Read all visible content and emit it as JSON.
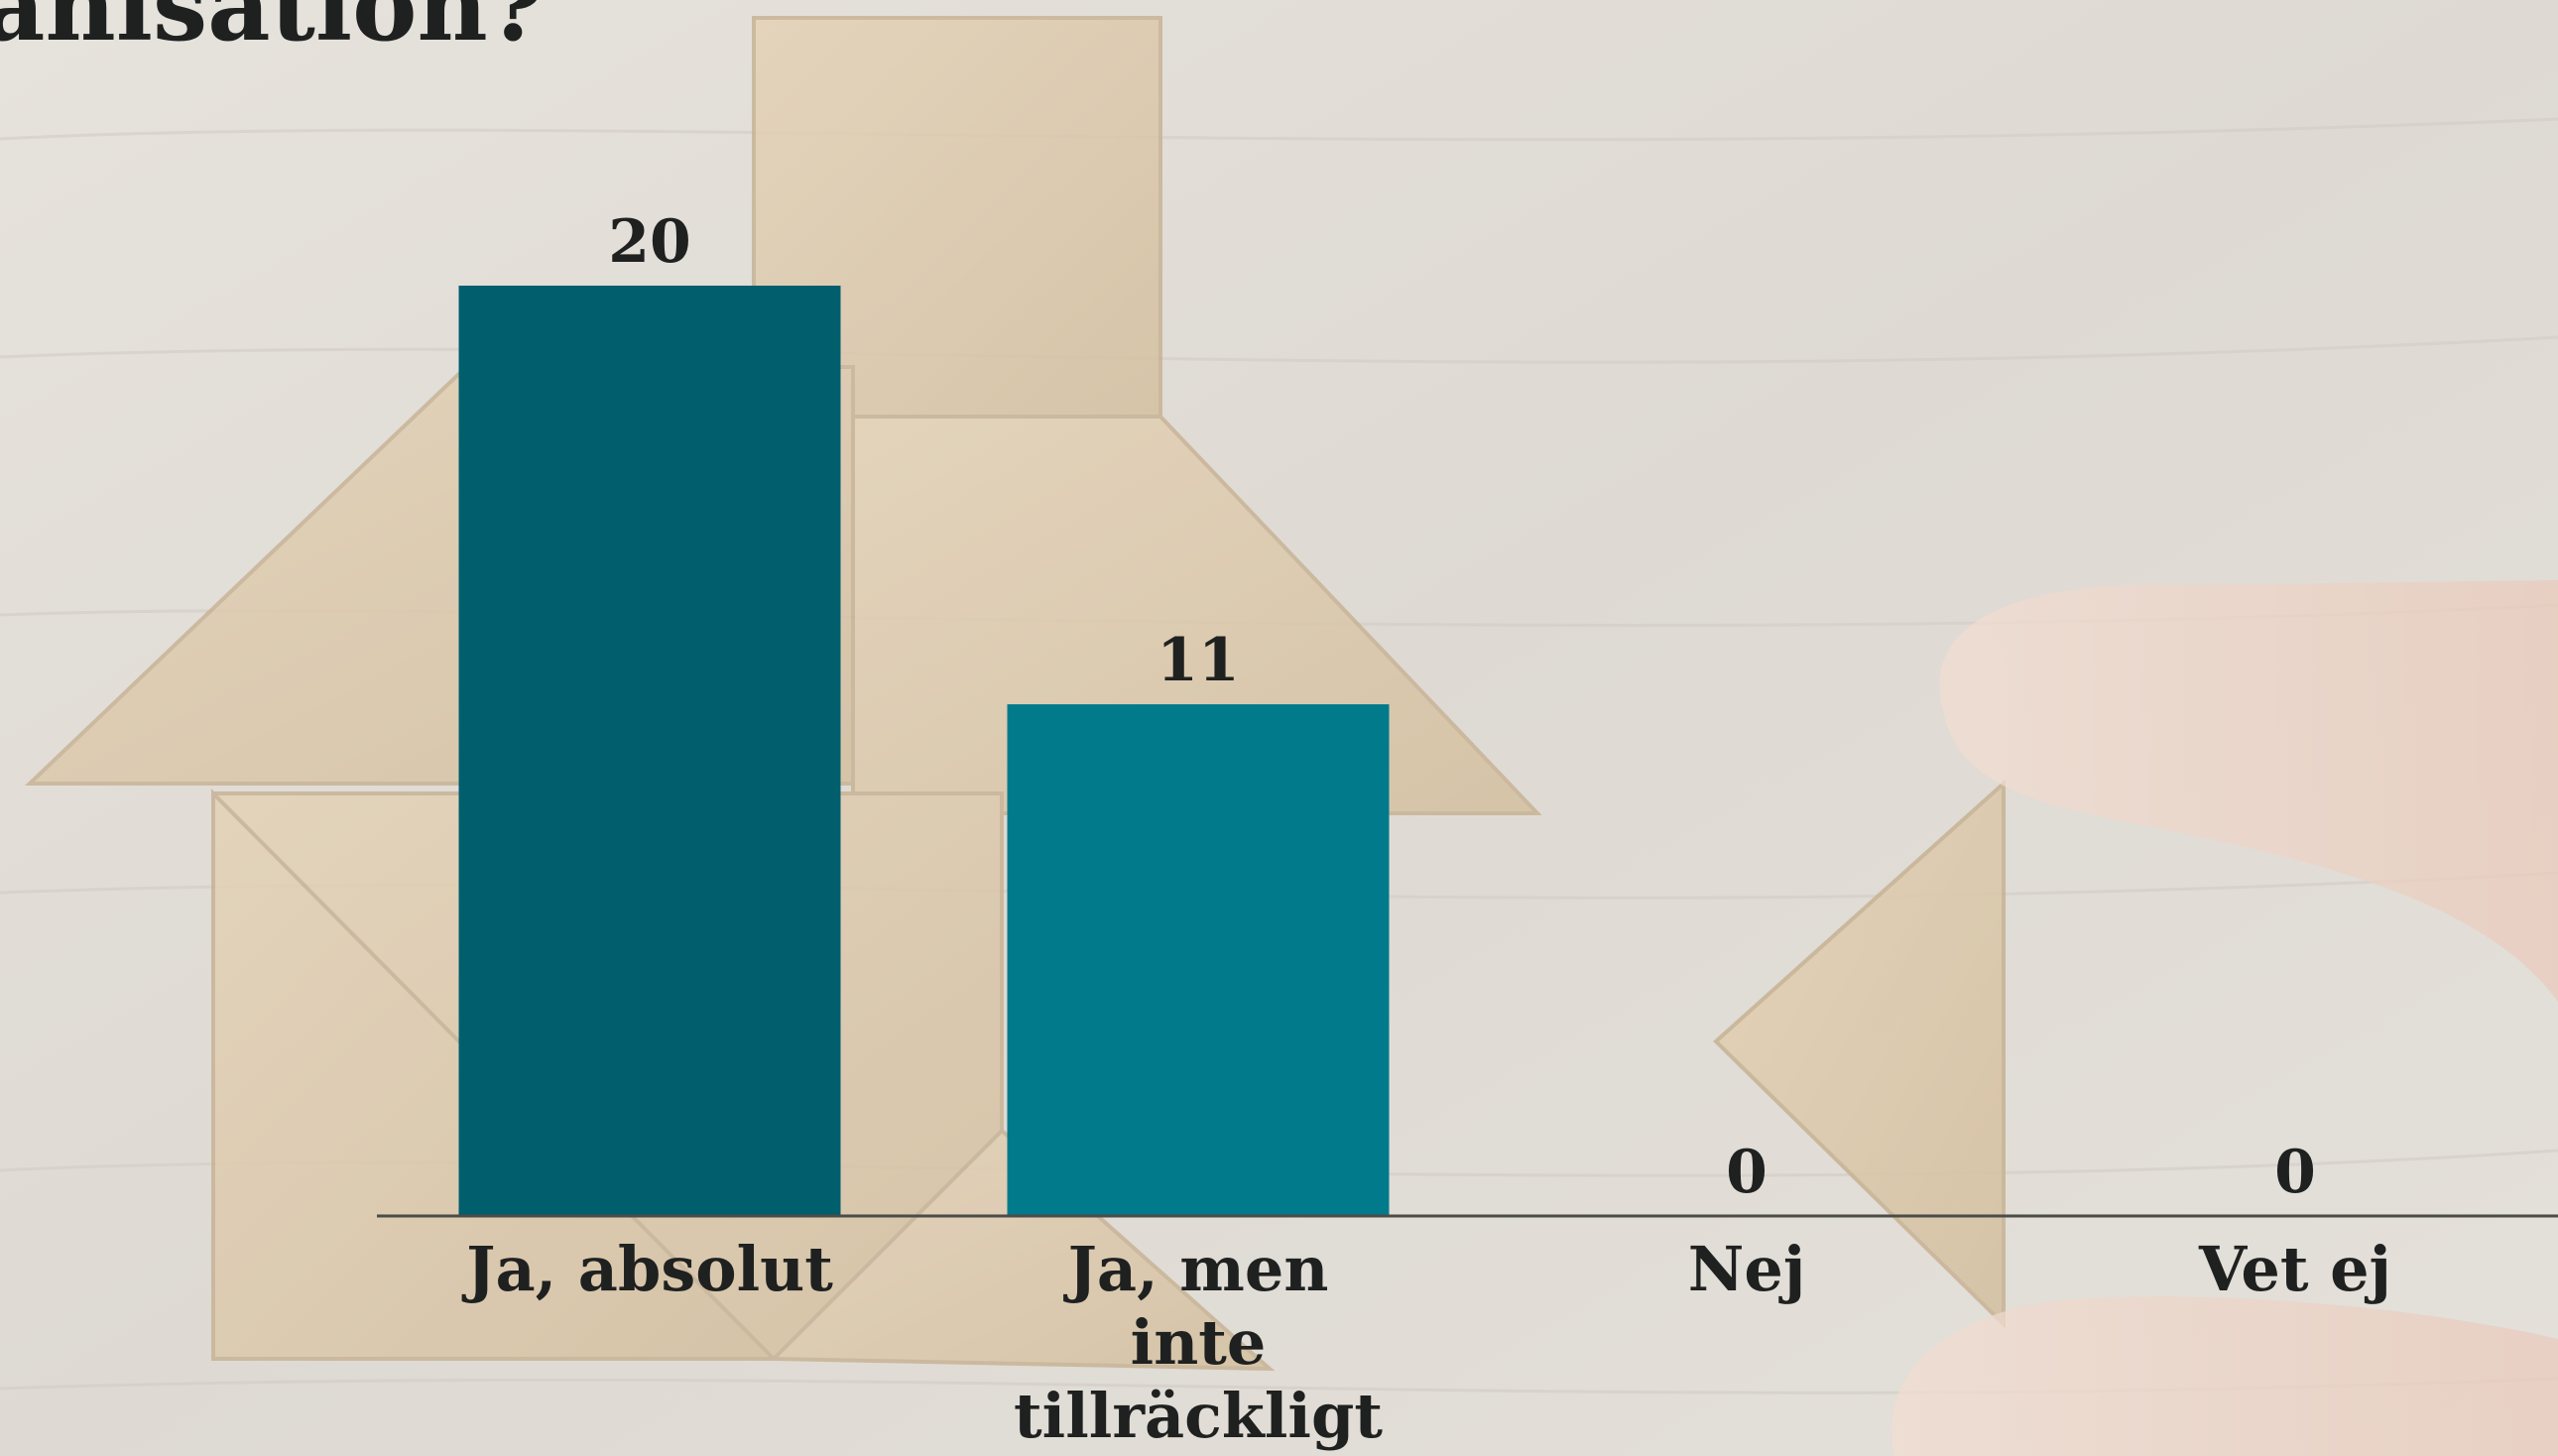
{
  "colors": {
    "wood_background": "#e2ddd6",
    "tangram_piece": "#dcc8a9",
    "bar_primary": "#015e6c",
    "bar_secondary": "#017a8c",
    "axis_line": "#4b4b48",
    "text": "#1f2120"
  },
  "slide": {
    "title_fragment": "anisation?"
  },
  "chart_data": {
    "type": "bar",
    "categories": [
      [
        "Ja, absolut"
      ],
      [
        "Ja, men",
        "inte",
        "tillräckligt"
      ],
      [
        "Nej"
      ],
      [
        "Vet ej"
      ]
    ],
    "values": [
      20,
      11,
      0,
      0
    ],
    "data_labels": [
      "20",
      "11",
      "0",
      "0"
    ],
    "bar_colors": [
      "#015e6c",
      "#017a8c",
      "#017a8c",
      "#017a8c"
    ],
    "ylim": [
      0,
      20
    ],
    "grid": false,
    "legend": "none"
  }
}
